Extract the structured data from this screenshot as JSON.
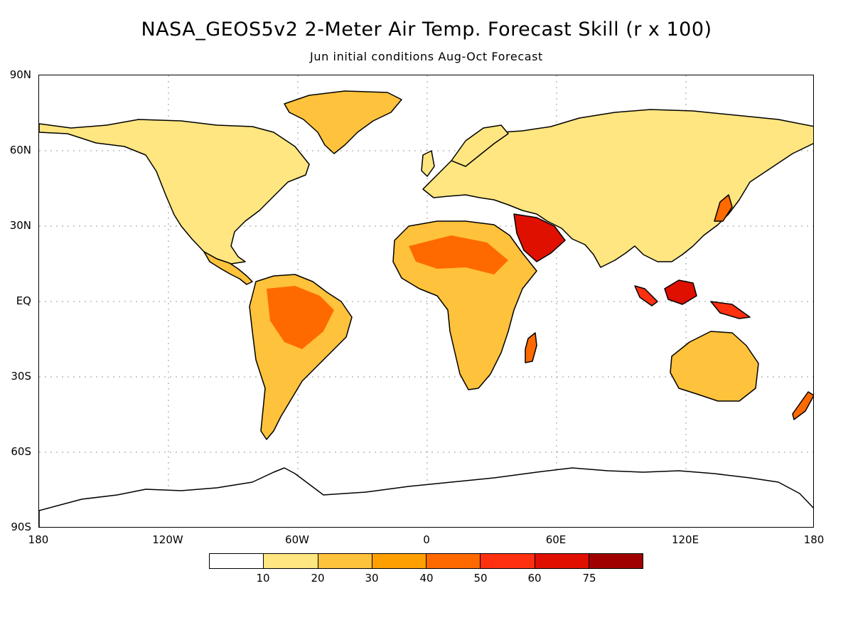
{
  "title": "NASA_GEOS5v2 2-Meter Air Temp. Forecast Skill (r x 100)",
  "subtitle": "Jun initial conditions  Aug-Oct Forecast",
  "lat_labels": [
    "90N",
    "60N",
    "30N",
    "EQ",
    "30S",
    "60S",
    "90S"
  ],
  "lon_labels": [
    "180",
    "120W",
    "60W",
    "0",
    "60E",
    "120E",
    "180"
  ],
  "legend": {
    "colors": [
      "#ffffff",
      "#ffe680",
      "#ffc23c",
      "#ffa000",
      "#ff6a00",
      "#ff3010",
      "#e01000",
      "#a00000"
    ],
    "labels": [
      "10",
      "20",
      "30",
      "40",
      "50",
      "60",
      "75"
    ]
  },
  "colors": {
    "land_low": "#ffe680",
    "land_mid": "#ffc23c",
    "land_high": "#ff6a00",
    "land_peak": "#e01000",
    "coast": "#000000",
    "grid": "#9a9a9a"
  }
}
